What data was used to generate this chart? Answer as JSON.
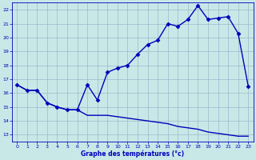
{
  "title": "Graphe des températures (°c)",
  "x_values": [
    0,
    1,
    2,
    3,
    4,
    5,
    6,
    7,
    8,
    9,
    10,
    11,
    12,
    13,
    14,
    15,
    16,
    17,
    18,
    19,
    20,
    21,
    22,
    23
  ],
  "temp_line": [
    16.6,
    16.2,
    16.2,
    15.3,
    15.0,
    14.8,
    14.8,
    16.6,
    15.5,
    17.5,
    17.8,
    18.0,
    18.8,
    19.5,
    19.8,
    21.0,
    20.8,
    21.3,
    22.3,
    21.3,
    21.4,
    21.5,
    20.3,
    16.5
  ],
  "dew_line": [
    16.6,
    16.2,
    16.2,
    15.3,
    15.0,
    14.8,
    14.8,
    14.4,
    14.4,
    14.4,
    14.3,
    14.2,
    14.1,
    14.0,
    13.9,
    13.8,
    13.6,
    13.5,
    13.4,
    13.2,
    13.1,
    13.0,
    12.9,
    12.9
  ],
  "ylim": [
    12.5,
    22.5
  ],
  "xlim": [
    -0.5,
    23.5
  ],
  "yticks": [
    13,
    14,
    15,
    16,
    17,
    18,
    19,
    20,
    21,
    22
  ],
  "xticks": [
    0,
    1,
    2,
    3,
    4,
    5,
    6,
    7,
    8,
    9,
    10,
    11,
    12,
    13,
    14,
    15,
    16,
    17,
    18,
    19,
    20,
    21,
    22,
    23
  ],
  "line_color": "#0000bb",
  "bg_color": "#c8e8e8",
  "grid_color": "#9ab8c8",
  "marker": "D",
  "marker_size": 2.5,
  "line_width": 1.0
}
